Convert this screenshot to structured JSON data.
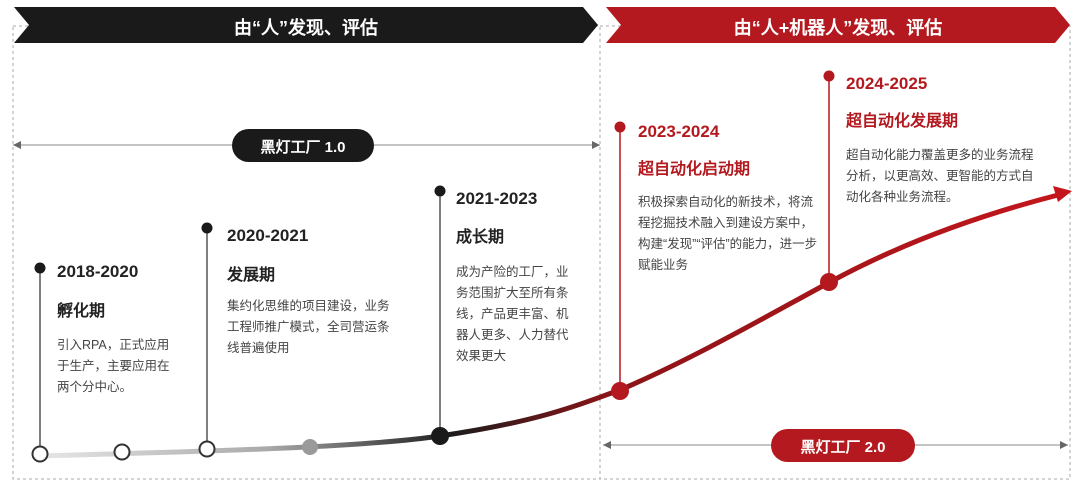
{
  "banners": {
    "left": "由“人”发现、评估",
    "right": "由“人+机器人”发现、评估"
  },
  "factories": {
    "v1": "黑灯工厂 1.0",
    "v2": "黑灯工厂 2.0"
  },
  "stages": [
    {
      "years": "2018-2020",
      "phase": "孵化期",
      "desc": "引入RPA，正式应用于生产，主要应用在两个分中心。"
    },
    {
      "years": "2020-2021",
      "phase": "发展期",
      "desc": "集约化思维的项目建设，业务工程师推广模式，全司营运条线普遍使用"
    },
    {
      "years": "2021-2023",
      "phase": "成长期",
      "desc": "成为产险的工厂，业务范围扩大至所有条线，产品更丰富、机器人更多、人力替代效果更大"
    },
    {
      "years": "2023-2024",
      "phase": "超自动化启动期",
      "desc": "积极探索自动化的新技术，将流程挖掘技术融入到建设方案中，构建“发现”“评估”的能力，进一步赋能业务"
    },
    {
      "years": "2024-2025",
      "phase": "超自动化发展期",
      "desc": "超自动化能力覆盖更多的业务流程分析，以更高效、更智能的方式自动化各种业务流程。"
    }
  ],
  "colors": {
    "dark": "#1a1a1a",
    "red": "#b3191e"
  }
}
